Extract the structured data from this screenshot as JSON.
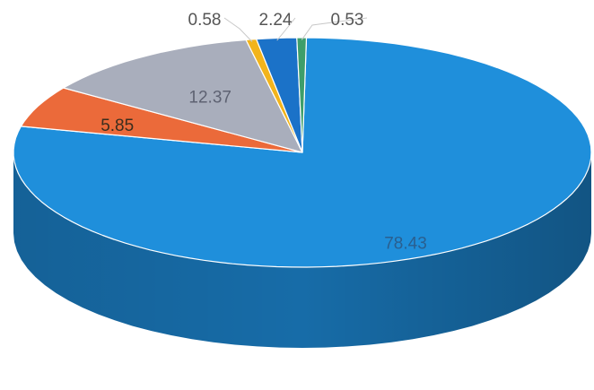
{
  "chart_data": {
    "type": "pie",
    "style": "3d",
    "title": "",
    "slices": [
      {
        "label": "78.43",
        "value": 78.43,
        "color": "#1F8FDB",
        "side_color": "#176CA8",
        "label_color": "#2A5F8F"
      },
      {
        "label": "5.85",
        "value": 5.85,
        "color": "#EB6A3A",
        "side_color": "#B84E27",
        "label_color": "#3B2E1E"
      },
      {
        "label": "12.37",
        "value": 12.37,
        "color": "#A9AEBC",
        "side_color": "#82879A",
        "label_color": "#5E6272"
      },
      {
        "label": "0.58",
        "value": 0.58,
        "color": "#F2B41C",
        "side_color": "#B98710",
        "label_color": "#555555"
      },
      {
        "label": "2.24",
        "value": 2.24,
        "color": "#1B72C8",
        "side_color": "#15589C",
        "label_color": "#555555"
      },
      {
        "label": "0.53",
        "value": 0.53,
        "color": "#3E9E6A",
        "side_color": "#2C7A50",
        "label_color": "#555555"
      }
    ]
  }
}
